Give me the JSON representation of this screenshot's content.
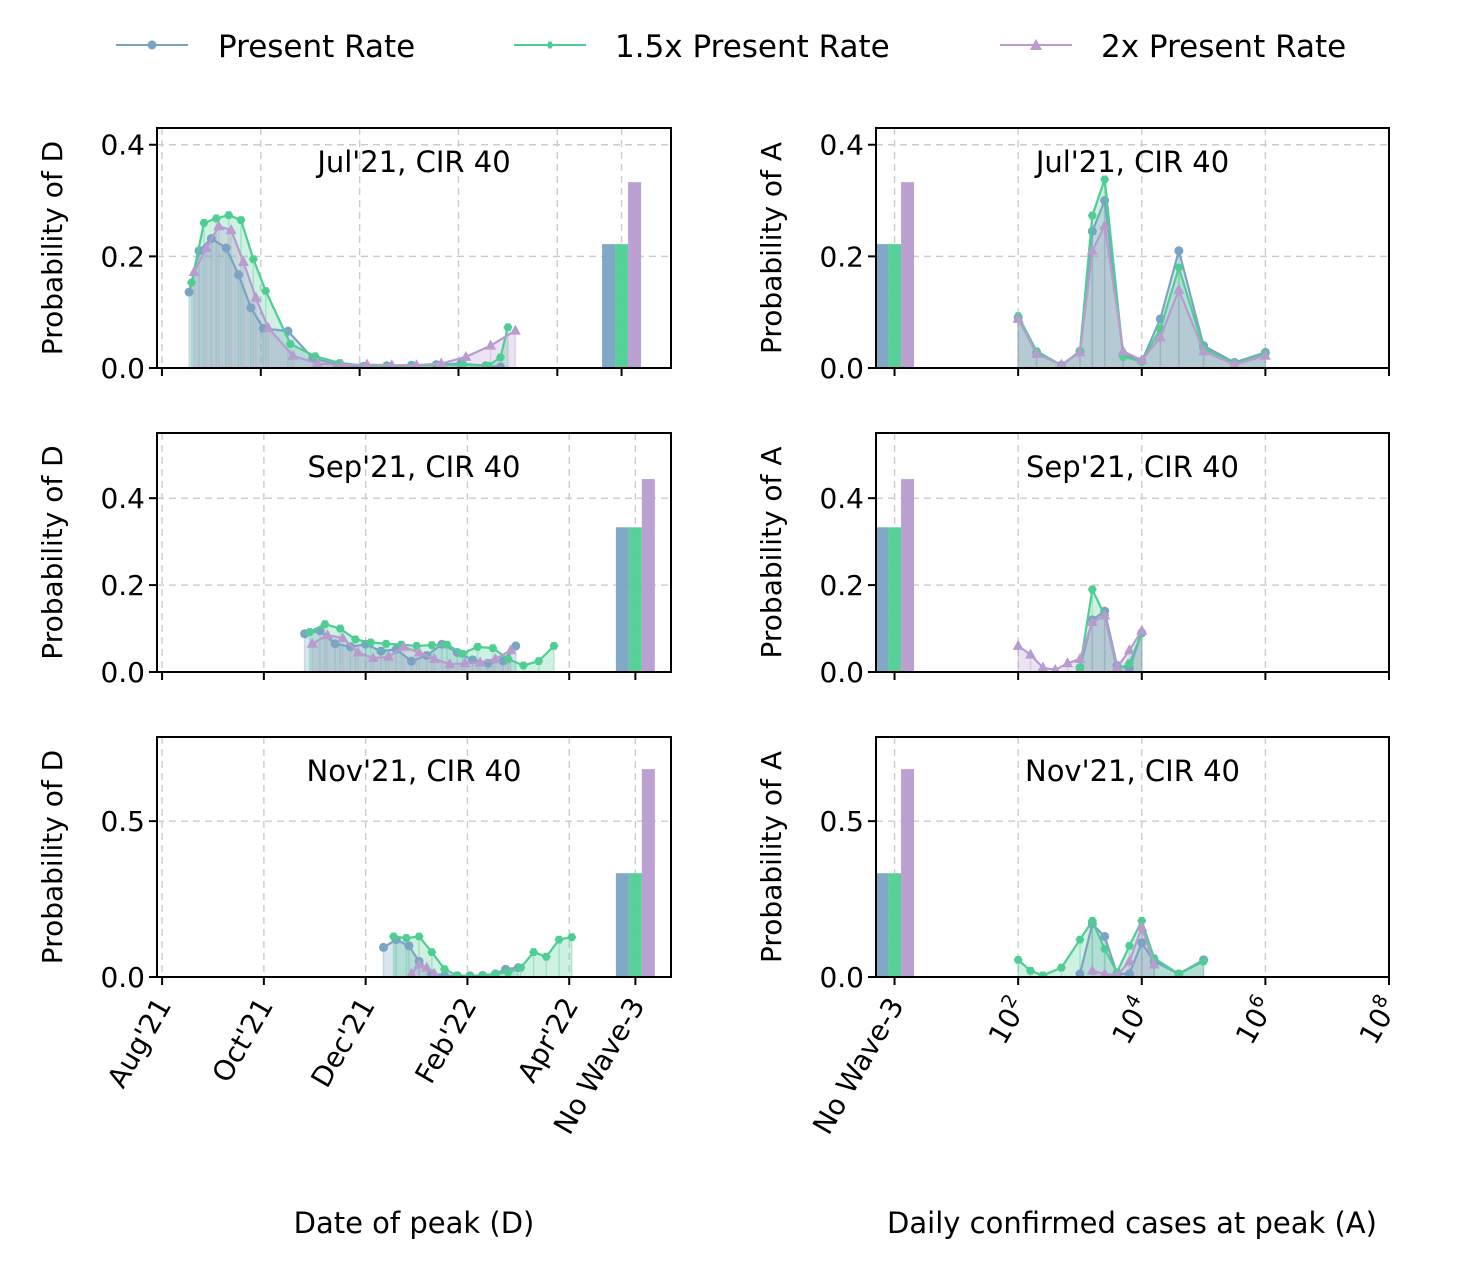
{
  "legend": {
    "placement": "top-center",
    "items": [
      {
        "label": "Present Rate",
        "color": "#7ba3c4",
        "marker": "circle"
      },
      {
        "label": "1.5x Present Rate",
        "color": "#4fce93",
        "marker": "hexagon"
      },
      {
        "label": "2x Present Rate",
        "color": "#b99bd0",
        "marker": "triangle"
      }
    ]
  },
  "axes": {
    "left_xlabel": "Date of peak (D)",
    "right_xlabel": "Daily confirmed cases at peak (A)",
    "left_ylabel": "Probability of D",
    "right_ylabel": "Probability of A",
    "left_xticks": [
      "Aug'21",
      "Oct'21",
      "Dec'21",
      "Feb'22",
      "Apr'22",
      "No Wave-3"
    ],
    "right_xticks": [
      "No Wave-3",
      "10",
      "10",
      "10",
      "10"
    ],
    "right_xtick_exponents": [
      "",
      "2",
      "4",
      "6",
      "8"
    ]
  },
  "chart_data": [
    {
      "type": "line",
      "panel": "Jul21-D",
      "title": "Jul'21, CIR 40",
      "x_kind": "date",
      "xlim": [
        -0.1,
        10.3
      ],
      "ylim": [
        0,
        0.43
      ],
      "yticks": [
        0.0,
        0.2,
        0.4
      ],
      "no_wave_x": 9.3,
      "no_wave": [
        0.222,
        0.222,
        0.333
      ],
      "series": [
        {
          "name": "Present Rate",
          "x": [
            0.55,
            0.75,
            1.0,
            1.3,
            1.55,
            1.8,
            2.05,
            2.55,
            3.05,
            3.55,
            4.05,
            4.55,
            5.05,
            5.55,
            6.05,
            6.55,
            6.85
          ],
          "y": [
            0.136,
            0.21,
            0.232,
            0.215,
            0.167,
            0.108,
            0.071,
            0.066,
            0.018,
            0.006,
            0.002,
            0.004,
            0.005,
            0.006,
            0.008,
            0.004,
            0.002
          ]
        },
        {
          "name": "1.5x Present Rate",
          "x": [
            0.6,
            0.85,
            1.1,
            1.35,
            1.6,
            1.85,
            2.1,
            2.6,
            3.1,
            3.6,
            4.1,
            4.6,
            5.1,
            5.6,
            6.1,
            6.6,
            6.85,
            7.0
          ],
          "y": [
            0.153,
            0.26,
            0.268,
            0.274,
            0.265,
            0.195,
            0.138,
            0.043,
            0.021,
            0.009,
            0.004,
            0.003,
            0.004,
            0.005,
            0.006,
            0.004,
            0.019,
            0.073
          ]
        },
        {
          "name": "2x Present Rate",
          "x": [
            0.65,
            0.9,
            1.15,
            1.4,
            1.65,
            1.9,
            2.15,
            2.65,
            3.15,
            3.65,
            4.15,
            4.65,
            5.15,
            5.65,
            6.15,
            6.65,
            7.15
          ],
          "y": [
            0.172,
            0.215,
            0.254,
            0.247,
            0.19,
            0.126,
            0.072,
            0.022,
            0.008,
            0.005,
            0.006,
            0.005,
            0.005,
            0.008,
            0.02,
            0.04,
            0.067
          ]
        }
      ]
    },
    {
      "type": "line",
      "panel": "Jul21-A",
      "title": "Jul'21, CIR 40",
      "x_kind": "log",
      "xlim": [
        -0.3,
        8.0
      ],
      "ylim": [
        0,
        0.43
      ],
      "yticks": [
        0.0,
        0.2,
        0.4
      ],
      "no_wave_x": 0.0,
      "no_wave": [
        0.222,
        0.222,
        0.333
      ],
      "series": [
        {
          "name": "Present Rate",
          "x": [
            2.0,
            2.3,
            2.7,
            3.0,
            3.2,
            3.4,
            3.7,
            4.0,
            4.3,
            4.6,
            5.0,
            5.5,
            6.0
          ],
          "y": [
            0.09,
            0.028,
            0.005,
            0.03,
            0.245,
            0.3,
            0.025,
            0.012,
            0.088,
            0.21,
            0.04,
            0.01,
            0.028
          ]
        },
        {
          "name": "1.5x Present Rate",
          "x": [
            2.0,
            2.3,
            2.7,
            3.0,
            3.2,
            3.4,
            3.7,
            4.0,
            4.3,
            4.6,
            5.0,
            5.5,
            6.0
          ],
          "y": [
            0.093,
            0.03,
            0.005,
            0.03,
            0.273,
            0.338,
            0.02,
            0.012,
            0.07,
            0.18,
            0.035,
            0.008,
            0.025
          ]
        },
        {
          "name": "2x Present Rate",
          "x": [
            2.0,
            2.3,
            2.7,
            3.0,
            3.2,
            3.4,
            3.7,
            4.0,
            4.3,
            4.6,
            5.0,
            5.5,
            6.0
          ],
          "y": [
            0.088,
            0.025,
            0.006,
            0.028,
            0.21,
            0.255,
            0.03,
            0.014,
            0.055,
            0.14,
            0.03,
            0.006,
            0.022
          ]
        }
      ]
    },
    {
      "type": "line",
      "panel": "Sep21-D",
      "title": "Sep'21, CIR 40",
      "x_kind": "date",
      "xlim": [
        -0.1,
        10.0
      ],
      "ylim": [
        0,
        0.55
      ],
      "yticks": [
        0.0,
        0.2,
        0.4
      ],
      "no_wave_x": 9.3,
      "no_wave": [
        0.333,
        0.333,
        0.444
      ],
      "series": [
        {
          "name": "Present Rate",
          "x": [
            2.8,
            3.1,
            3.4,
            3.7,
            4.0,
            4.3,
            4.6,
            4.9,
            5.2,
            5.5,
            5.8,
            6.1,
            6.4,
            6.7,
            6.95
          ],
          "y": [
            0.088,
            0.095,
            0.065,
            0.058,
            0.064,
            0.048,
            0.052,
            0.025,
            0.038,
            0.064,
            0.045,
            0.028,
            0.02,
            0.025,
            0.06
          ]
        },
        {
          "name": "1.5x Present Rate",
          "x": [
            2.9,
            3.2,
            3.5,
            3.8,
            4.1,
            4.4,
            4.7,
            5.0,
            5.3,
            5.6,
            5.9,
            6.2,
            6.5,
            6.8,
            7.1,
            7.4,
            7.7
          ],
          "y": [
            0.092,
            0.11,
            0.1,
            0.075,
            0.068,
            0.065,
            0.063,
            0.06,
            0.062,
            0.063,
            0.042,
            0.058,
            0.055,
            0.03,
            0.015,
            0.025,
            0.06
          ]
        },
        {
          "name": "2x Present Rate",
          "x": [
            2.95,
            3.25,
            3.55,
            3.85,
            4.15,
            4.45,
            4.75,
            5.05,
            5.35,
            5.65,
            5.95,
            6.25,
            6.55,
            6.85
          ],
          "y": [
            0.065,
            0.085,
            0.078,
            0.045,
            0.032,
            0.035,
            0.058,
            0.045,
            0.03,
            0.018,
            0.02,
            0.022,
            0.03,
            0.05
          ]
        }
      ]
    },
    {
      "type": "line",
      "panel": "Sep21-A",
      "title": "Sep'21, CIR 40",
      "x_kind": "log",
      "xlim": [
        -0.3,
        8.0
      ],
      "ylim": [
        0,
        0.55
      ],
      "yticks": [
        0.0,
        0.2,
        0.4
      ],
      "no_wave_x": 0.0,
      "no_wave": [
        0.333,
        0.333,
        0.444
      ],
      "series": [
        {
          "name": "Present Rate",
          "x": [
            3.0,
            3.2,
            3.4,
            3.6,
            3.8,
            4.0
          ],
          "y": [
            0.01,
            0.12,
            0.14,
            0.015,
            0.008,
            0.09
          ]
        },
        {
          "name": "1.5x Present Rate",
          "x": [
            3.0,
            3.2,
            3.4,
            3.6,
            3.8,
            4.0
          ],
          "y": [
            0.01,
            0.19,
            0.13,
            0.005,
            0.02,
            0.09
          ]
        },
        {
          "name": "2x Present Rate",
          "x": [
            2.0,
            2.2,
            2.4,
            2.6,
            2.8,
            3.0,
            3.2,
            3.4,
            3.6,
            3.8,
            4.0
          ],
          "y": [
            0.06,
            0.04,
            0.01,
            0.005,
            0.02,
            0.03,
            0.115,
            0.13,
            0.01,
            0.05,
            0.095
          ]
        }
      ]
    },
    {
      "type": "line",
      "panel": "Nov21-D",
      "title": "Nov'21, CIR 40",
      "x_kind": "date",
      "xlim": [
        -0.1,
        10.0
      ],
      "ylim": [
        0,
        0.77
      ],
      "yticks": [
        0.0,
        0.5
      ],
      "no_wave_x": 9.3,
      "no_wave": [
        0.333,
        0.333,
        0.667
      ],
      "series": [
        {
          "name": "Present Rate",
          "x": [
            4.35,
            4.6,
            4.85,
            5.05,
            5.3,
            5.55,
            5.8,
            6.05,
            6.3,
            6.55,
            6.75,
            7.0
          ],
          "y": [
            0.095,
            0.12,
            0.1,
            0.05,
            0.01,
            0.005,
            0.004,
            0.004,
            0.005,
            0.01,
            0.025,
            0.03
          ]
        },
        {
          "name": "1.5x Present Rate",
          "x": [
            4.55,
            4.8,
            5.05,
            5.3,
            5.55,
            5.8,
            6.05,
            6.3,
            6.55,
            6.8,
            7.05,
            7.3,
            7.55,
            7.8,
            8.05
          ],
          "y": [
            0.13,
            0.125,
            0.13,
            0.08,
            0.025,
            0.005,
            0.003,
            0.004,
            0.01,
            0.015,
            0.03,
            0.08,
            0.065,
            0.12,
            0.128
          ]
        },
        {
          "name": "2x Present Rate",
          "x": [
            4.9,
            5.05,
            5.2,
            5.35
          ],
          "y": [
            0.01,
            0.04,
            0.03,
            0.01
          ]
        }
      ]
    },
    {
      "type": "line",
      "panel": "Nov21-A",
      "title": "Nov'21, CIR 40",
      "x_kind": "log",
      "xlim": [
        -0.3,
        8.0
      ],
      "ylim": [
        0,
        0.77
      ],
      "yticks": [
        0.0,
        0.5
      ],
      "no_wave_x": 0.0,
      "no_wave": [
        0.333,
        0.333,
        0.667
      ],
      "series": [
        {
          "name": "Present Rate",
          "x": [
            3.0,
            3.2,
            3.4,
            3.6,
            3.8,
            4.0,
            4.2,
            4.6,
            5.0
          ],
          "y": [
            0.01,
            0.17,
            0.13,
            0.01,
            0.01,
            0.11,
            0.05,
            0.01,
            0.055
          ]
        },
        {
          "name": "1.5x Present Rate",
          "x": [
            2.0,
            2.2,
            2.4,
            2.7,
            3.0,
            3.2,
            3.4,
            3.6,
            3.8,
            4.0,
            4.2,
            4.6,
            5.0
          ],
          "y": [
            0.055,
            0.02,
            0.005,
            0.03,
            0.12,
            0.18,
            0.09,
            0.015,
            0.1,
            0.18,
            0.06,
            0.01,
            0.05
          ]
        },
        {
          "name": "2x Present Rate",
          "x": [
            3.2,
            3.4,
            3.6,
            3.8,
            4.0,
            4.2
          ],
          "y": [
            0.02,
            0.01,
            0.005,
            0.05,
            0.16,
            0.04
          ]
        }
      ]
    }
  ]
}
